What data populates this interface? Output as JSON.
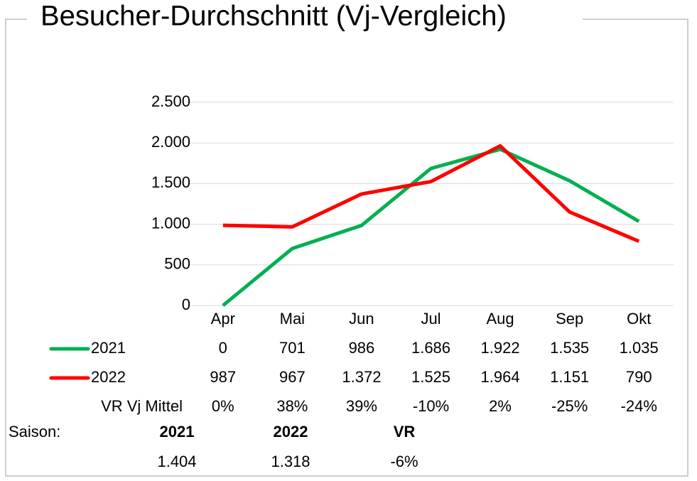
{
  "chart_data": {
    "type": "line",
    "title": "Besucher-Durchschnitt (Vj-Vergleich)",
    "categories": [
      "Apr",
      "Mai",
      "Jun",
      "Jul",
      "Aug",
      "Sep",
      "Okt"
    ],
    "series": [
      {
        "name": "2021",
        "color": "#00b050",
        "values": [
          0,
          701,
          986,
          1686,
          1922,
          1535,
          1035
        ],
        "value_labels": [
          "0",
          "701",
          "986",
          "1.686",
          "1.922",
          "1.535",
          "1.035"
        ]
      },
      {
        "name": "2022",
        "color": "#ff0000",
        "values": [
          987,
          967,
          1372,
          1525,
          1964,
          1151,
          790
        ],
        "value_labels": [
          "987",
          "967",
          "1.372",
          "1.525",
          "1.964",
          "1.151",
          "790"
        ]
      }
    ],
    "ylim": [
      0,
      2500
    ],
    "yticks": [
      0,
      500,
      {
        "value": 1000,
        "label": "1.000"
      },
      {
        "value": 1500,
        "label": "1.500"
      },
      {
        "value": 2000,
        "label": "2.000"
      },
      {
        "value": 2500,
        "label": "2.500"
      }
    ],
    "grid": true,
    "data_table": {
      "row_label": "VR Vj Mittel",
      "values": [
        0,
        38,
        39,
        -10,
        2,
        -25,
        -24
      ],
      "value_labels": [
        "0%",
        "38%",
        "39%",
        "-10%",
        "2%",
        "-25%",
        "-24%"
      ]
    },
    "season": {
      "label": "Saison:",
      "headers": [
        "2021",
        "2022",
        "VR"
      ],
      "values": [
        1404,
        1318,
        -6
      ],
      "value_labels": [
        "1.404",
        "1.318",
        "-6%"
      ]
    }
  }
}
